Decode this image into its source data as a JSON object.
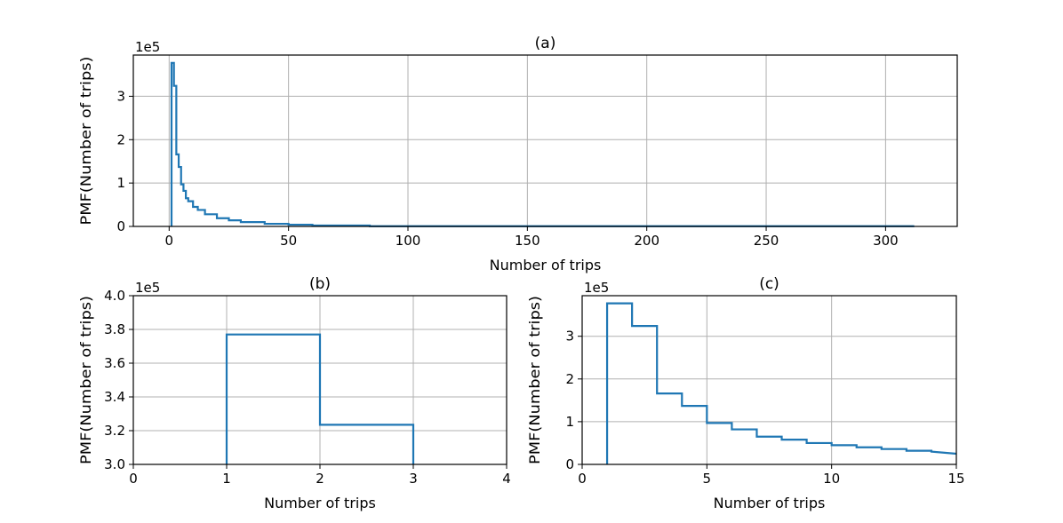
{
  "chart_data": [
    {
      "id": "a",
      "type": "line",
      "step": true,
      "title": "(a)",
      "xlabel": "Number of trips",
      "ylabel": "PMF(Number of trips)",
      "offset_text": "1e5",
      "xlim": [
        -15,
        330
      ],
      "ylim": [
        0,
        3.95
      ],
      "xticks": [
        0,
        50,
        100,
        150,
        200,
        250,
        300
      ],
      "yticks": [
        0,
        1,
        2,
        3
      ],
      "grid": true,
      "series": [
        {
          "color": "#1f77b4",
          "x": [
            1,
            1,
            2,
            2,
            3,
            3,
            4,
            4,
            5,
            5,
            6,
            6,
            7,
            7,
            8,
            8,
            10,
            10,
            12,
            12,
            15,
            15,
            20,
            20,
            25,
            25,
            30,
            30,
            40,
            40,
            50,
            50,
            60,
            60,
            84,
            84,
            312
          ],
          "y": [
            0,
            3.77,
            3.77,
            3.24,
            3.24,
            1.66,
            1.66,
            1.37,
            1.37,
            0.97,
            0.97,
            0.82,
            0.82,
            0.65,
            0.65,
            0.58,
            0.58,
            0.45,
            0.45,
            0.38,
            0.38,
            0.28,
            0.28,
            0.19,
            0.19,
            0.14,
            0.14,
            0.1,
            0.1,
            0.06,
            0.06,
            0.04,
            0.04,
            0.02,
            0.02,
            0.005,
            0.005
          ]
        }
      ]
    },
    {
      "id": "b",
      "type": "line",
      "step": true,
      "title": "(b)",
      "xlabel": "Number of trips",
      "ylabel": "PMF(Number of trips)",
      "offset_text": "1e5",
      "xlim": [
        0,
        4
      ],
      "ylim": [
        3.0,
        4.0
      ],
      "xticks": [
        0,
        1,
        2,
        3,
        4
      ],
      "yticks": [
        3.0,
        3.2,
        3.4,
        3.6,
        3.8,
        4.0
      ],
      "ytick_labels": [
        "3.0",
        "3.2",
        "3.4",
        "3.6",
        "3.8",
        "4.0"
      ],
      "grid": true,
      "series": [
        {
          "color": "#1f77b4",
          "x": [
            1,
            1,
            2,
            2,
            3,
            3
          ],
          "y": [
            3.0,
            3.77,
            3.77,
            3.235,
            3.235,
            3.0
          ]
        }
      ]
    },
    {
      "id": "c",
      "type": "line",
      "step": true,
      "title": "(c)",
      "xlabel": "Number of trips",
      "ylabel": "PMF(Number of trips)",
      "offset_text": "1e5",
      "xlim": [
        0,
        15
      ],
      "ylim": [
        0,
        3.95
      ],
      "xticks": [
        0,
        5,
        10,
        15
      ],
      "yticks": [
        0,
        1,
        2,
        3
      ],
      "grid": true,
      "series": [
        {
          "color": "#1f77b4",
          "x": [
            1,
            1,
            2,
            2,
            3,
            3,
            4,
            4,
            5,
            5,
            6,
            6,
            7,
            7,
            8,
            8,
            9,
            9,
            10,
            10,
            11,
            11,
            12,
            12,
            13,
            13,
            14,
            14,
            15
          ],
          "y": [
            0,
            3.77,
            3.77,
            3.24,
            3.24,
            1.66,
            1.66,
            1.37,
            1.37,
            0.97,
            0.97,
            0.82,
            0.82,
            0.65,
            0.65,
            0.58,
            0.58,
            0.5,
            0.5,
            0.45,
            0.45,
            0.4,
            0.4,
            0.36,
            0.36,
            0.32,
            0.32,
            0.3,
            0.25
          ]
        }
      ]
    }
  ]
}
